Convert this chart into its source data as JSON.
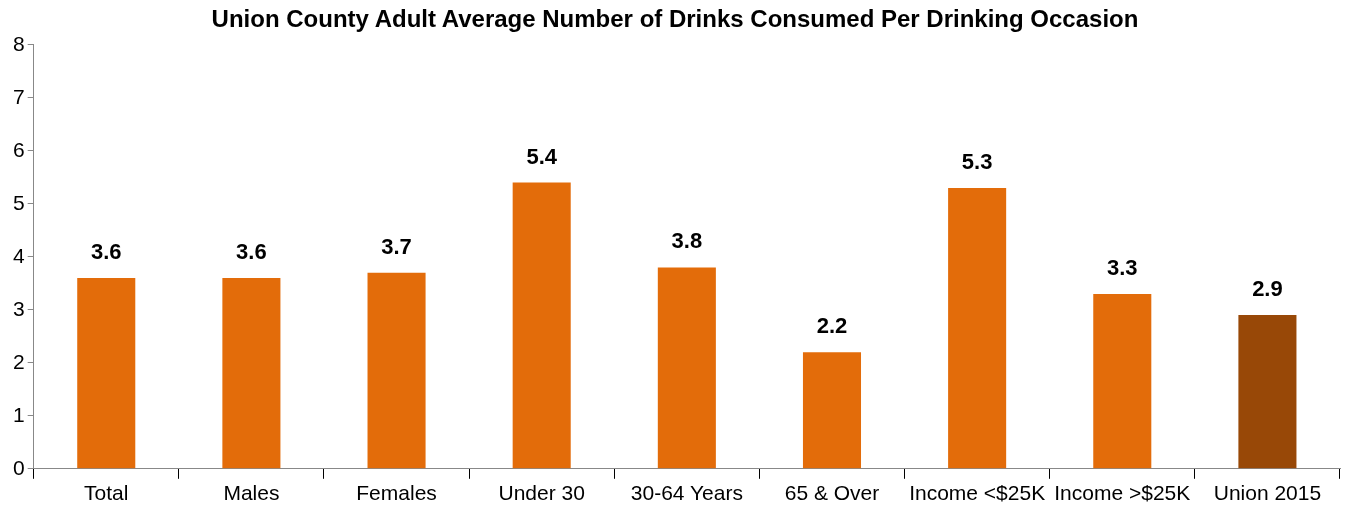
{
  "chart_data": {
    "type": "bar",
    "title": "Union County Adult Average Number of Drinks Consumed Per Drinking Occasion",
    "categories": [
      "Total",
      "Males",
      "Females",
      "Under 30",
      "30-64 Years",
      "65 & Over",
      "Income <$25K",
      "Income >$25K",
      "Union 2015"
    ],
    "values": [
      3.6,
      3.6,
      3.7,
      5.4,
      3.8,
      2.2,
      5.3,
      3.3,
      2.9
    ],
    "colors": [
      "#e36c0a",
      "#e36c0a",
      "#e36c0a",
      "#e36c0a",
      "#e36c0a",
      "#e36c0a",
      "#e36c0a",
      "#e36c0a",
      "#984807"
    ],
    "ylim": [
      0,
      8
    ],
    "yticks": [
      0,
      1,
      2,
      3,
      4,
      5,
      6,
      7,
      8
    ],
    "grid": false,
    "legend": false,
    "data_labels": true
  }
}
